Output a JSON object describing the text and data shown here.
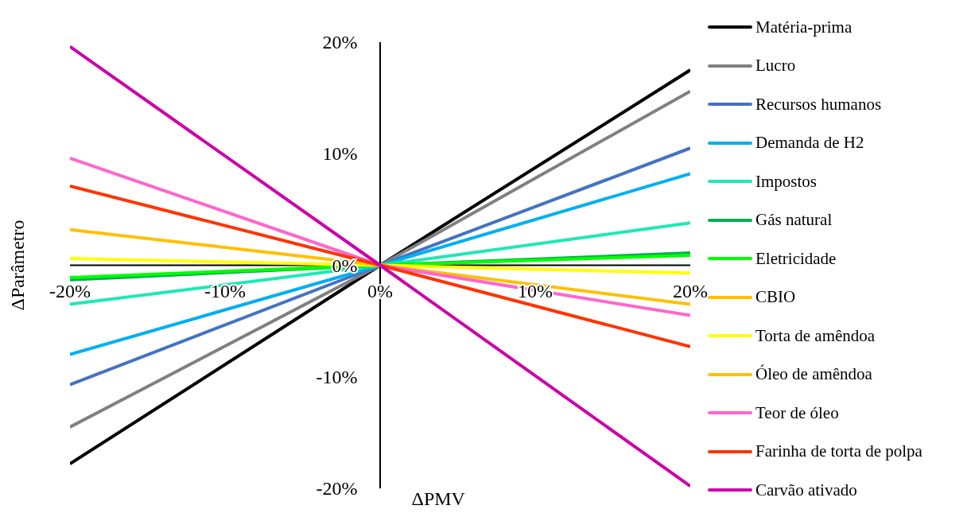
{
  "chart_data": {
    "type": "line",
    "xlabel": "ΔPMV",
    "ylabel": "ΔParâmetro",
    "x": [
      -20,
      0,
      20
    ],
    "xlim": [
      -20,
      20
    ],
    "xticks": [
      {
        "value": -20,
        "label": "-20%"
      },
      {
        "value": -10,
        "label": "-10%"
      },
      {
        "value": 0,
        "label": "0%"
      },
      {
        "value": 10,
        "label": "10%"
      },
      {
        "value": 20,
        "label": "20%"
      }
    ],
    "ylim": [
      -20,
      20
    ],
    "yticks": [
      {
        "value": -20,
        "label": "-20%"
      },
      {
        "value": -10,
        "label": "-10%"
      },
      {
        "value": 0,
        "label": "0%"
      },
      {
        "value": 10,
        "label": "10%"
      },
      {
        "value": 20,
        "label": "20%"
      }
    ],
    "grid": false,
    "legend": "right",
    "marker": "none",
    "line_style": "solid",
    "series": [
      {
        "name": "Matéria-prima",
        "color": "#000000",
        "values": [
          -17.8,
          0,
          17.5
        ]
      },
      {
        "name": "Lucro",
        "color": "#808080",
        "values": [
          -14.5,
          0,
          15.6
        ]
      },
      {
        "name": "Recursos humanos",
        "color": "#4472c4",
        "values": [
          -10.7,
          0,
          10.5
        ]
      },
      {
        "name": "Demanda de H2",
        "color": "#00b0f0",
        "values": [
          -8,
          0,
          8.2
        ]
      },
      {
        "name": "Impostos",
        "color": "#1de9b6",
        "values": [
          -3.5,
          0,
          3.8
        ]
      },
      {
        "name": "Gás natural",
        "color": "#00b050",
        "values": [
          -1.3,
          0,
          1.1
        ]
      },
      {
        "name": "Eletricidade",
        "color": "#00ff00",
        "values": [
          -1.1,
          0,
          0.9
        ]
      },
      {
        "name": "CBIO",
        "color": "#ffc000",
        "values": [
          null,
          null,
          null
        ]
      },
      {
        "name": "Torta de amêndoa",
        "color": "#ffff00",
        "values": [
          0.6,
          0,
          -0.7
        ]
      },
      {
        "name": "Óleo de amêndoa",
        "color": "#ffc000",
        "values": [
          3.2,
          0,
          -3.5
        ]
      },
      {
        "name": "Teor de óleo",
        "color": "#ff66cc",
        "values": [
          9.6,
          0,
          -4.5
        ]
      },
      {
        "name": "Farinha de torta de polpa",
        "color": "#ff3300",
        "values": [
          7.1,
          0,
          -7.3
        ]
      },
      {
        "name": "Carvão ativado",
        "color": "#cc00aa",
        "values": [
          19.6,
          0,
          -19.8
        ]
      }
    ]
  }
}
